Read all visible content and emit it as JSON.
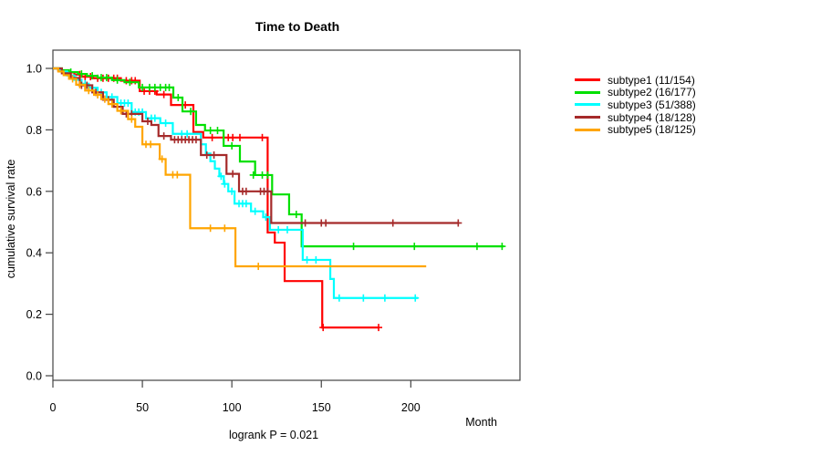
{
  "chart_data": {
    "type": "line",
    "subtype": "kaplan-meier-step",
    "title": "Time to Death",
    "xlabel": "Month",
    "ylabel": "cumulative survival rate",
    "annotation": "logrank P = 0.021",
    "x_ticks": [
      0,
      50,
      100,
      150,
      200
    ],
    "y_ticks": [
      "0.0",
      "0.2",
      "0.4",
      "0.6",
      "0.8",
      "1.0"
    ],
    "xlim": [
      0,
      261
    ],
    "ylim": [
      0,
      1
    ],
    "grid": false,
    "legend_position": "right-outside",
    "axis_color": "#444444",
    "series": [
      {
        "name": "subtype1",
        "label": "subtype1 (11/154)",
        "color": "#FF0000",
        "steps": [
          [
            0,
            1
          ],
          [
            3,
            0.993
          ],
          [
            7,
            0.987
          ],
          [
            12,
            0.98
          ],
          [
            16,
            0.973
          ],
          [
            22,
            0.968
          ],
          [
            38,
            0.96
          ],
          [
            48.5,
            0.926
          ],
          [
            58,
            0.915
          ],
          [
            66,
            0.881
          ],
          [
            78.5,
            0.793
          ],
          [
            84,
            0.775
          ],
          [
            120,
            0.466
          ],
          [
            124,
            0.433
          ],
          [
            129.5,
            0.308
          ],
          [
            150.5,
            0.157
          ],
          [
            182,
            0.157
          ]
        ],
        "censors": [
          [
            15,
            0.98
          ],
          [
            18,
            0.973
          ],
          [
            21,
            0.973
          ],
          [
            25,
            0.968
          ],
          [
            28,
            0.968
          ],
          [
            31,
            0.968
          ],
          [
            34,
            0.968
          ],
          [
            36,
            0.968
          ],
          [
            41,
            0.96
          ],
          [
            44,
            0.96
          ],
          [
            46,
            0.96
          ],
          [
            51,
            0.926
          ],
          [
            54,
            0.926
          ],
          [
            57,
            0.926
          ],
          [
            62,
            0.915
          ],
          [
            74,
            0.881
          ],
          [
            89,
            0.775
          ],
          [
            98,
            0.775
          ],
          [
            100.5,
            0.775
          ],
          [
            104.5,
            0.775
          ],
          [
            117,
            0.775
          ],
          [
            151,
            0.157
          ],
          [
            182,
            0.157
          ]
        ]
      },
      {
        "name": "subtype2",
        "label": "subtype2 (16/177)",
        "color": "#00E000",
        "steps": [
          [
            0,
            1
          ],
          [
            5,
            0.994
          ],
          [
            9,
            0.988
          ],
          [
            14,
            0.982
          ],
          [
            19,
            0.976
          ],
          [
            25,
            0.97
          ],
          [
            33,
            0.962
          ],
          [
            40,
            0.955
          ],
          [
            48,
            0.938
          ],
          [
            67.3,
            0.905
          ],
          [
            72.4,
            0.86
          ],
          [
            80,
            0.816
          ],
          [
            85,
            0.798
          ],
          [
            95.4,
            0.748
          ],
          [
            104.5,
            0.697
          ],
          [
            113,
            0.653
          ],
          [
            122.5,
            0.59
          ],
          [
            132,
            0.525
          ],
          [
            139,
            0.421
          ],
          [
            252,
            0.421
          ]
        ],
        "censors": [
          [
            10,
            0.988
          ],
          [
            16,
            0.982
          ],
          [
            22,
            0.976
          ],
          [
            27,
            0.97
          ],
          [
            30,
            0.97
          ],
          [
            36,
            0.962
          ],
          [
            43,
            0.955
          ],
          [
            50,
            0.938
          ],
          [
            54,
            0.938
          ],
          [
            57,
            0.938
          ],
          [
            60,
            0.938
          ],
          [
            63,
            0.938
          ],
          [
            65,
            0.938
          ],
          [
            70,
            0.905
          ],
          [
            77,
            0.86
          ],
          [
            88,
            0.798
          ],
          [
            92,
            0.798
          ],
          [
            100,
            0.748
          ],
          [
            112,
            0.653
          ],
          [
            117,
            0.653
          ],
          [
            120,
            0.653
          ],
          [
            136,
            0.525
          ],
          [
            168,
            0.421
          ],
          [
            202,
            0.421
          ],
          [
            237,
            0.421
          ],
          [
            251,
            0.421
          ]
        ]
      },
      {
        "name": "subtype3",
        "label": "subtype3 (51/388)",
        "color": "#00FFFF",
        "steps": [
          [
            0,
            1
          ],
          [
            4,
            0.99
          ],
          [
            8,
            0.977
          ],
          [
            12,
            0.963
          ],
          [
            16,
            0.95
          ],
          [
            20,
            0.937
          ],
          [
            25,
            0.922
          ],
          [
            30,
            0.907
          ],
          [
            36,
            0.887
          ],
          [
            44,
            0.858
          ],
          [
            52,
            0.838
          ],
          [
            60,
            0.822
          ],
          [
            67,
            0.787
          ],
          [
            82.7,
            0.753
          ],
          [
            85.5,
            0.723
          ],
          [
            88,
            0.698
          ],
          [
            90.5,
            0.674
          ],
          [
            93,
            0.649
          ],
          [
            95.5,
            0.624
          ],
          [
            98,
            0.6
          ],
          [
            101.5,
            0.56
          ],
          [
            110.7,
            0.535
          ],
          [
            117.5,
            0.516
          ],
          [
            121.3,
            0.475
          ],
          [
            139.6,
            0.377
          ],
          [
            155,
            0.315
          ],
          [
            157,
            0.253
          ],
          [
            204,
            0.253
          ]
        ],
        "censors": [
          [
            9,
            0.977
          ],
          [
            13,
            0.963
          ],
          [
            18,
            0.95
          ],
          [
            27,
            0.922
          ],
          [
            33,
            0.907
          ],
          [
            38,
            0.887
          ],
          [
            40,
            0.887
          ],
          [
            42,
            0.887
          ],
          [
            46,
            0.858
          ],
          [
            48,
            0.858
          ],
          [
            50,
            0.858
          ],
          [
            55,
            0.838
          ],
          [
            57,
            0.838
          ],
          [
            63,
            0.822
          ],
          [
            72,
            0.787
          ],
          [
            75,
            0.787
          ],
          [
            94,
            0.649
          ],
          [
            96,
            0.624
          ],
          [
            100,
            0.6
          ],
          [
            104,
            0.56
          ],
          [
            106,
            0.56
          ],
          [
            108,
            0.56
          ],
          [
            113,
            0.535
          ],
          [
            119,
            0.516
          ],
          [
            126,
            0.475
          ],
          [
            131,
            0.475
          ],
          [
            142,
            0.377
          ],
          [
            147,
            0.377
          ],
          [
            160,
            0.253
          ],
          [
            173.5,
            0.253
          ],
          [
            185.5,
            0.253
          ],
          [
            202.5,
            0.253
          ]
        ]
      },
      {
        "name": "subtype4",
        "label": "subtype4 (18/128)",
        "color": "#A52A2A",
        "steps": [
          [
            0,
            1
          ],
          [
            5,
            0.984
          ],
          [
            10,
            0.969
          ],
          [
            15,
            0.945
          ],
          [
            22,
            0.922
          ],
          [
            28,
            0.898
          ],
          [
            34,
            0.875
          ],
          [
            39,
            0.852
          ],
          [
            50,
            0.828
          ],
          [
            55,
            0.816
          ],
          [
            59,
            0.78
          ],
          [
            66,
            0.768
          ],
          [
            82.7,
            0.718
          ],
          [
            97,
            0.657
          ],
          [
            104,
            0.6
          ],
          [
            122,
            0.497
          ],
          [
            227,
            0.497
          ]
        ],
        "censors": [
          [
            16,
            0.945
          ],
          [
            19,
            0.945
          ],
          [
            24,
            0.922
          ],
          [
            31,
            0.898
          ],
          [
            41,
            0.852
          ],
          [
            44,
            0.852
          ],
          [
            53,
            0.828
          ],
          [
            62,
            0.78
          ],
          [
            68,
            0.768
          ],
          [
            70,
            0.768
          ],
          [
            72,
            0.768
          ],
          [
            74,
            0.768
          ],
          [
            76,
            0.768
          ],
          [
            78,
            0.768
          ],
          [
            80,
            0.768
          ],
          [
            86,
            0.718
          ],
          [
            90,
            0.718
          ],
          [
            100.5,
            0.657
          ],
          [
            106,
            0.6
          ],
          [
            108,
            0.6
          ],
          [
            116,
            0.6
          ],
          [
            118,
            0.6
          ],
          [
            120,
            0.6
          ],
          [
            141,
            0.497
          ],
          [
            150,
            0.497
          ],
          [
            152.5,
            0.497
          ],
          [
            190,
            0.497
          ],
          [
            226.5,
            0.497
          ]
        ]
      },
      {
        "name": "subtype5",
        "label": "subtype5 (18/125)",
        "color": "#FFA500",
        "steps": [
          [
            0,
            1
          ],
          [
            3,
            0.99
          ],
          [
            6,
            0.978
          ],
          [
            9,
            0.966
          ],
          [
            13,
            0.947
          ],
          [
            18,
            0.928
          ],
          [
            23,
            0.914
          ],
          [
            27,
            0.9
          ],
          [
            31,
            0.884
          ],
          [
            36,
            0.862
          ],
          [
            42,
            0.835
          ],
          [
            46,
            0.81
          ],
          [
            50,
            0.753
          ],
          [
            59.7,
            0.705
          ],
          [
            63,
            0.654
          ],
          [
            76.7,
            0.48
          ],
          [
            102,
            0.356
          ],
          [
            208.6,
            0.356
          ]
        ],
        "censors": [
          [
            11,
            0.966
          ],
          [
            15,
            0.947
          ],
          [
            20,
            0.928
          ],
          [
            25,
            0.914
          ],
          [
            29,
            0.9
          ],
          [
            33,
            0.884
          ],
          [
            38,
            0.862
          ],
          [
            44,
            0.835
          ],
          [
            52,
            0.753
          ],
          [
            54.6,
            0.753
          ],
          [
            61,
            0.705
          ],
          [
            67,
            0.654
          ],
          [
            69.5,
            0.654
          ],
          [
            88,
            0.48
          ],
          [
            96,
            0.48
          ],
          [
            114.8,
            0.356
          ]
        ]
      }
    ]
  }
}
